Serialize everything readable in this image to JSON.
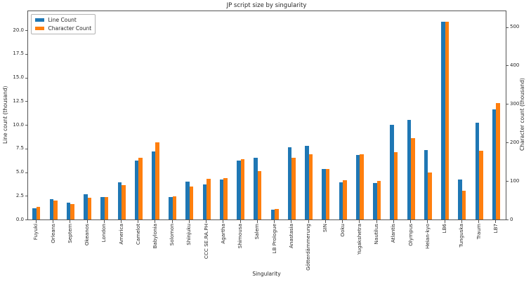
{
  "title": "JP script size by singularity",
  "xlabel": "Singularity",
  "ylabel_left": "Line count (thousand)",
  "ylabel_right": "Character count (thousand)",
  "legend": {
    "items": [
      {
        "label": "Line Count",
        "color": "#1f77b4"
      },
      {
        "label": "Character Count",
        "color": "#ff7f0e"
      }
    ]
  },
  "chart_data": {
    "type": "bar",
    "title": "JP script size by singularity",
    "xlabel": "Singularity",
    "ylabel": "Line count (thousand)",
    "ylabel2": "Character count (thousand)",
    "legend_position": "upper left",
    "grid": false,
    "categories": [
      "Fuyuki",
      "Orleans",
      "Septem",
      "Okeanos",
      "London",
      "America",
      "Camelot",
      "Babylonia",
      "Solomon",
      "Shinjuku",
      "CCC SE.RA.PH",
      "Agartha",
      "Shimousa",
      "Salem",
      "LB Prologue",
      "Anastasia",
      "Götterdämmerung",
      "SIN",
      "Ooku",
      "Yugakshetra",
      "Nautilus",
      "Atlantis",
      "Olympus",
      "Heian-kyo",
      "LB6",
      "Tunguska",
      "Traum",
      "LB7"
    ],
    "series": [
      {
        "name": "Line Count",
        "axis": "left",
        "color": "#1f77b4",
        "values": [
          1.15,
          2.15,
          1.8,
          2.7,
          2.4,
          3.9,
          6.2,
          7.2,
          2.35,
          4.0,
          3.7,
          4.2,
          6.25,
          6.5,
          1.05,
          7.65,
          7.8,
          5.3,
          3.9,
          6.85,
          3.85,
          10.0,
          10.55,
          7.3,
          20.9,
          4.2,
          10.25,
          11.6
        ]
      },
      {
        "name": "Character Count",
        "axis": "right",
        "color": "#ff7f0e",
        "values": [
          33,
          49,
          41,
          57,
          59,
          89,
          161,
          201,
          61,
          85,
          106,
          108,
          156,
          126,
          28,
          160,
          170,
          131,
          102,
          170,
          100,
          175,
          211,
          122,
          513,
          75,
          178,
          303
        ]
      }
    ],
    "left_ticks": [
      0.0,
      2.5,
      5.0,
      7.5,
      10.0,
      12.5,
      15.0,
      17.5,
      20.0
    ],
    "right_ticks": [
      0,
      100,
      200,
      300,
      400,
      500
    ],
    "ylim_left": [
      0,
      22.0
    ],
    "ylim_right": [
      0,
      541
    ]
  }
}
